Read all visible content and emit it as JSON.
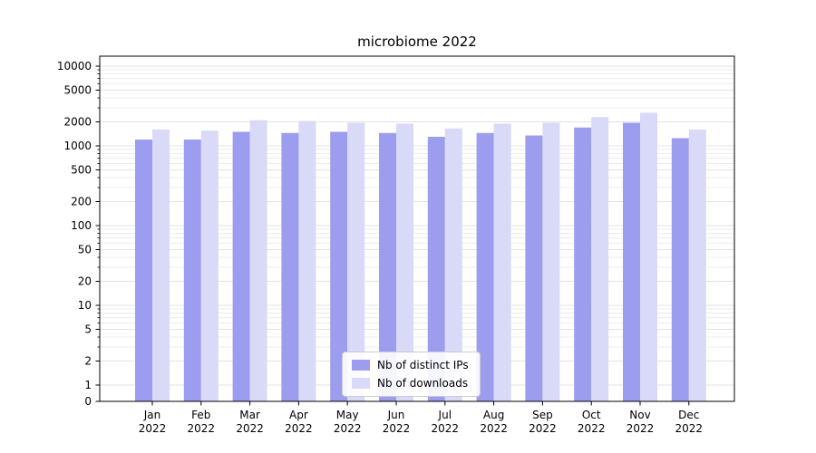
{
  "chart_data": {
    "type": "bar",
    "title": "microbiome 2022",
    "xlabel": "",
    "ylabel": "",
    "yscale": "symlog",
    "grid": true,
    "legend_position": "lower center",
    "ylim": [
      0,
      13000
    ],
    "yticks": [
      0,
      1,
      2,
      5,
      10,
      20,
      50,
      100,
      200,
      500,
      1000,
      2000,
      5000,
      10000
    ],
    "categories": [
      "Jan 2022",
      "Feb 2022",
      "Mar 2022",
      "Apr 2022",
      "May 2022",
      "Jun 2022",
      "Jul 2022",
      "Aug 2022",
      "Sep 2022",
      "Oct 2022",
      "Nov 2022",
      "Dec 2022"
    ],
    "series": [
      {
        "name": "Nb of distinct IPs",
        "color": "#9d9df0",
        "values": [
          1200,
          1200,
          1500,
          1450,
          1500,
          1450,
          1300,
          1450,
          1350,
          1700,
          1950,
          1250
        ]
      },
      {
        "name": "Nb of downloads",
        "color": "#d9d9f8",
        "values": [
          1600,
          1550,
          2100,
          2050,
          1950,
          1900,
          1650,
          1900,
          1950,
          2300,
          2600,
          1600
        ]
      }
    ]
  }
}
